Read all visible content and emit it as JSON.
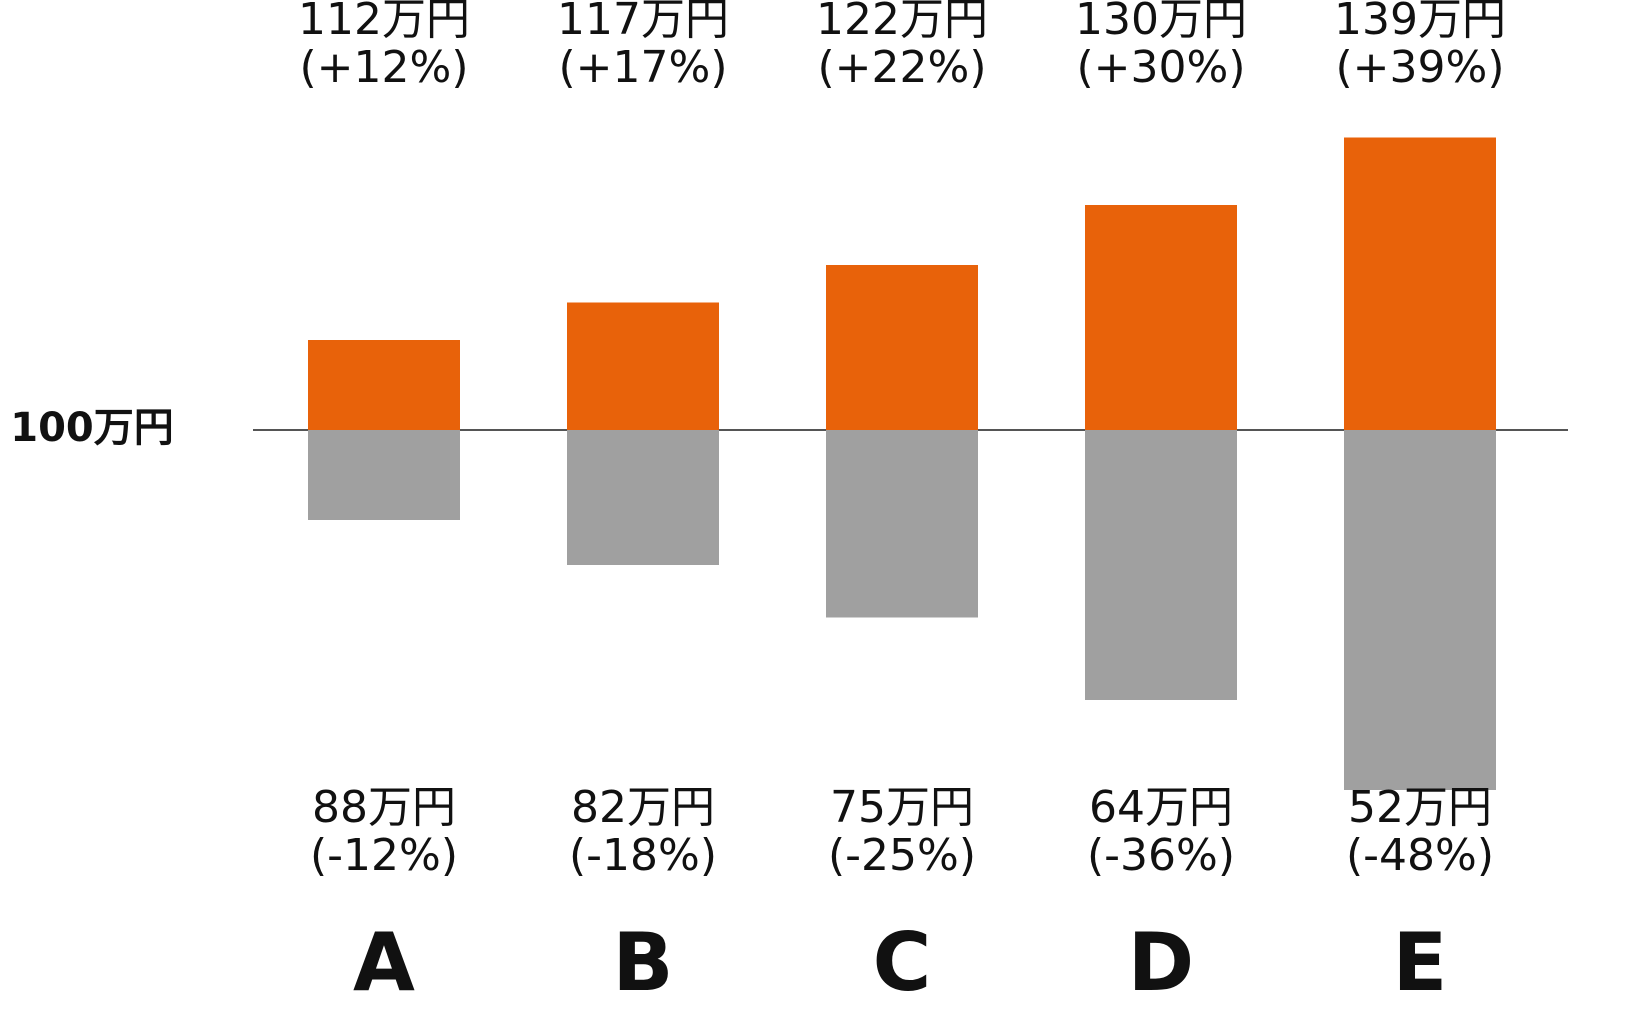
{
  "chart_data": {
    "type": "bar",
    "categories": [
      "A",
      "B",
      "C",
      "D",
      "E"
    ],
    "series": [
      {
        "color": "#e8620a",
        "values": [
          112,
          117,
          122,
          130,
          139
        ],
        "value_labels": [
          "112万円",
          "117万円",
          "122万円",
          "130万円",
          "139万円"
        ],
        "changes": [
          12,
          17,
          22,
          30,
          39
        ],
        "change_labels": [
          "(+12%)",
          "(+17%)",
          "(+22%)",
          "(+30%)",
          "(+39%)"
        ]
      },
      {
        "color": "#a0a0a0",
        "values": [
          88,
          82,
          75,
          64,
          52
        ],
        "value_labels": [
          "88万円",
          "82万円",
          "75万円",
          "64万円",
          "52万円"
        ],
        "changes": [
          -12,
          -18,
          -25,
          -36,
          -48
        ],
        "change_labels": [
          "(-12%)",
          "(-18%)",
          "(-25%)",
          "(-36%)",
          "(-48%)"
        ]
      }
    ],
    "ylim": [
      40,
      150
    ],
    "yticks": [
      {
        "value": 100,
        "label": "100万円"
      }
    ]
  }
}
